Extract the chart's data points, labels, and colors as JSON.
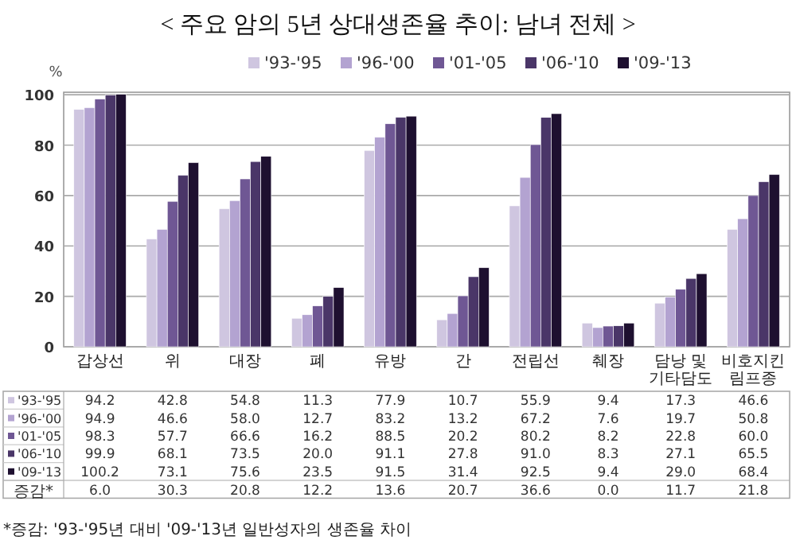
{
  "chart_data": {
    "type": "bar",
    "title": "< 주요 암의 5년 상대생존율 추이: 남녀 전체 >",
    "ylabel": "%",
    "categories": [
      "갑상선",
      "위",
      "대장",
      "폐",
      "유방",
      "간",
      "전립선",
      "췌장",
      "담낭 및\n기타담도",
      "비호지킨\n림프종"
    ],
    "series": [
      {
        "name": "'93-'95",
        "color": "#cfc6e0",
        "values": [
          94.2,
          42.8,
          54.8,
          11.3,
          77.9,
          10.7,
          55.9,
          9.4,
          17.3,
          46.6
        ]
      },
      {
        "name": "'96-'00",
        "color": "#b3a3d1",
        "values": [
          94.9,
          46.6,
          58.0,
          12.7,
          83.2,
          13.2,
          67.2,
          7.6,
          19.7,
          50.8
        ]
      },
      {
        "name": "'01-'05",
        "color": "#6f5794",
        "values": [
          98.3,
          57.7,
          66.6,
          16.2,
          88.5,
          20.2,
          80.2,
          8.2,
          22.8,
          60.0
        ]
      },
      {
        "name": "'06-'10",
        "color": "#4a3668",
        "values": [
          99.9,
          68.1,
          73.5,
          20.0,
          91.1,
          27.8,
          91.0,
          8.3,
          27.1,
          65.5
        ]
      },
      {
        "name": "'09-'13",
        "color": "#1e1030",
        "values": [
          100.2,
          73.1,
          75.6,
          23.5,
          91.5,
          31.4,
          92.5,
          9.4,
          29.0,
          68.4
        ]
      }
    ],
    "ylim": [
      0,
      101
    ],
    "yticks": [
      0,
      20,
      40,
      60,
      80,
      100
    ],
    "grid": "y",
    "legend": "top",
    "annotations": [
      "94.2",
      "42.8",
      "54.8",
      "11.3",
      "77.9",
      "10.7",
      "55.9",
      "9.4",
      "17.3",
      "46.6",
      "94.9",
      "46.6",
      "58.0",
      "12.7",
      "83.2",
      "13.2",
      "67.2",
      "7.6",
      "19.7",
      "50.8",
      "98.3",
      "57.7",
      "66.6",
      "16.2",
      "88.5",
      "20.2",
      "80.2",
      "8.2",
      "22.8",
      "60.0",
      "99.9",
      "68.1",
      "73.5",
      "20.0",
      "91.1",
      "27.8",
      "91.0",
      "8.3",
      "27.1",
      "65.5",
      "100.2",
      "73.1",
      "75.6",
      "23.5",
      "91.5",
      "31.4",
      "92.5",
      "9.4",
      "29.0",
      "68.4",
      "증감*",
      "6.0",
      "30.3",
      "20.8",
      "12.2",
      "13.6",
      "20.7",
      "36.6",
      "0.0",
      "11.7",
      "21.8",
      "*증감: '93-'95년 대비 '09-'13년 일반성자의 생존율 차이"
    ]
  }
}
